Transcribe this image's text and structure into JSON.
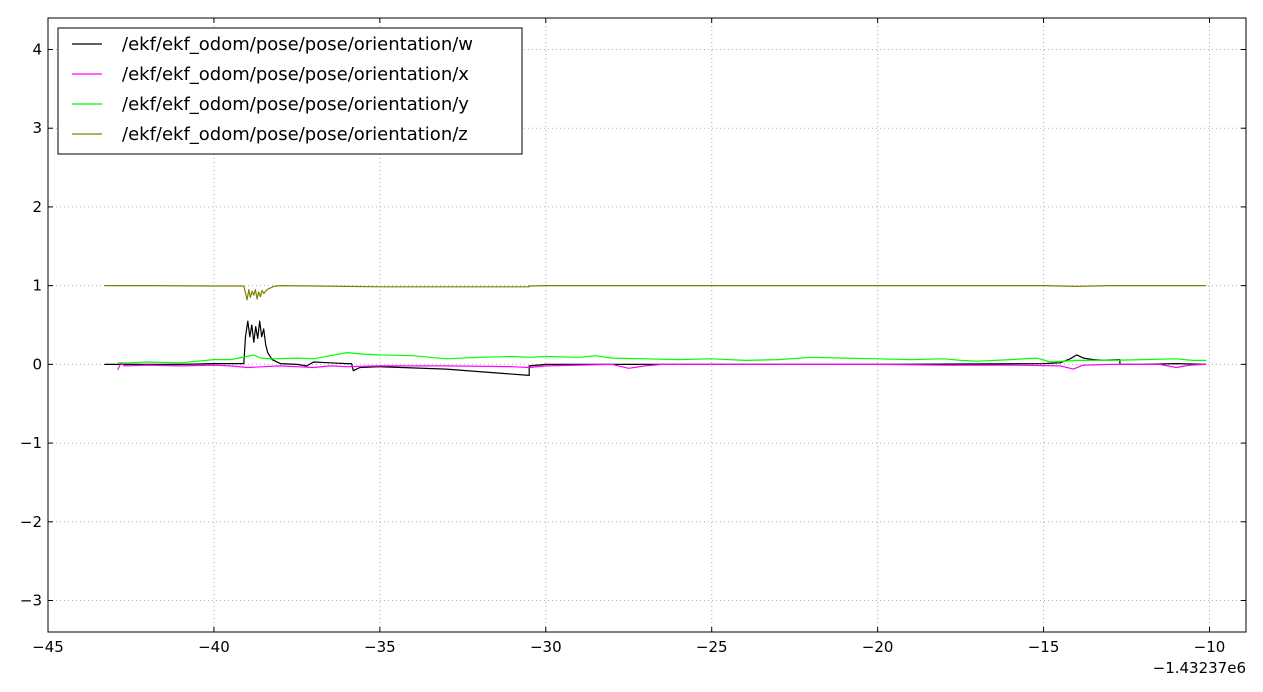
{
  "chart_data": {
    "type": "line",
    "xlim": [
      -45,
      -8.9
    ],
    "ylim": [
      -3.4,
      4.4
    ],
    "x_ticks": [
      -45,
      -40,
      -35,
      -30,
      -25,
      -20,
      -15,
      -10
    ],
    "x_tick_labels": [
      "−45",
      "−40",
      "−35",
      "−30",
      "−25",
      "−20",
      "−15",
      "−10"
    ],
    "y_ticks": [
      -3,
      -2,
      -1,
      0,
      1,
      2,
      3,
      4
    ],
    "y_tick_labels": [
      "−3",
      "−2",
      "−1",
      "0",
      "1",
      "2",
      "3",
      "4"
    ],
    "x_offset_label": "−1.43237e6",
    "grid": true,
    "legend_position": "top-left",
    "series": [
      {
        "name": "/ekf/ekf_odom/pose/pose/orientation/w",
        "color": "#000000",
        "points": [
          [
            -43.3,
            0.0
          ],
          [
            -42,
            0.0
          ],
          [
            -41,
            0.0
          ],
          [
            -40,
            0.01
          ],
          [
            -39.1,
            0.01
          ],
          [
            -39.05,
            0.35
          ],
          [
            -38.98,
            0.55
          ],
          [
            -38.92,
            0.35
          ],
          [
            -38.86,
            0.5
          ],
          [
            -38.8,
            0.28
          ],
          [
            -38.74,
            0.48
          ],
          [
            -38.68,
            0.33
          ],
          [
            -38.62,
            0.55
          ],
          [
            -38.56,
            0.35
          ],
          [
            -38.5,
            0.45
          ],
          [
            -38.44,
            0.25
          ],
          [
            -38.38,
            0.15
          ],
          [
            -38.25,
            0.06
          ],
          [
            -38.0,
            0.01
          ],
          [
            -37.5,
            0.0
          ],
          [
            -37.2,
            -0.02
          ],
          [
            -37.0,
            0.03
          ],
          [
            -36.5,
            0.02
          ],
          [
            -36.0,
            0.01
          ],
          [
            -35.85,
            0.01
          ],
          [
            -35.8,
            -0.08
          ],
          [
            -35.6,
            -0.04
          ],
          [
            -35.0,
            -0.03
          ],
          [
            -33.0,
            -0.06
          ],
          [
            -30.5,
            -0.14
          ],
          [
            -30.5,
            -0.02
          ],
          [
            -30.0,
            0.0
          ],
          [
            -28.0,
            0.0
          ],
          [
            -25.0,
            0.0
          ],
          [
            -20.0,
            0.0
          ],
          [
            -15.0,
            0.01
          ],
          [
            -14.5,
            0.02
          ],
          [
            -14.2,
            0.07
          ],
          [
            -14.0,
            0.12
          ],
          [
            -13.8,
            0.08
          ],
          [
            -13.5,
            0.06
          ],
          [
            -13.2,
            0.05
          ],
          [
            -12.7,
            0.06
          ],
          [
            -12.7,
            0.0
          ],
          [
            -12.0,
            0.0
          ],
          [
            -11.0,
            0.01
          ],
          [
            -10.1,
            0.0
          ]
        ]
      },
      {
        "name": "/ekf/ekf_odom/pose/pose/orientation/x",
        "color": "#ff00ff",
        "points": [
          [
            -42.9,
            -0.07
          ],
          [
            -42.8,
            0.02
          ],
          [
            -42.7,
            -0.02
          ],
          [
            -42,
            -0.01
          ],
          [
            -41,
            -0.02
          ],
          [
            -40,
            -0.01
          ],
          [
            -39.5,
            -0.02
          ],
          [
            -39,
            -0.04
          ],
          [
            -38.5,
            -0.03
          ],
          [
            -38,
            -0.02
          ],
          [
            -37.5,
            -0.03
          ],
          [
            -37,
            -0.04
          ],
          [
            -36.5,
            -0.02
          ],
          [
            -36,
            -0.03
          ],
          [
            -35,
            -0.02
          ],
          [
            -33,
            -0.02
          ],
          [
            -31,
            -0.03
          ],
          [
            -30.5,
            -0.04
          ],
          [
            -30,
            -0.02
          ],
          [
            -29,
            -0.01
          ],
          [
            -28,
            0.0
          ],
          [
            -27.5,
            -0.05
          ],
          [
            -27,
            -0.02
          ],
          [
            -26.5,
            0.0
          ],
          [
            -25,
            0.0
          ],
          [
            -23,
            0.0
          ],
          [
            -20,
            0.0
          ],
          [
            -18,
            -0.01
          ],
          [
            -16,
            -0.01
          ],
          [
            -14.5,
            -0.02
          ],
          [
            -14.1,
            -0.06
          ],
          [
            -13.8,
            -0.01
          ],
          [
            -13,
            0.0
          ],
          [
            -11.5,
            0.0
          ],
          [
            -11,
            -0.04
          ],
          [
            -10.6,
            -0.01
          ],
          [
            -10.1,
            0.0
          ]
        ]
      },
      {
        "name": "/ekf/ekf_odom/pose/pose/orientation/y",
        "color": "#00ff00",
        "points": [
          [
            -42.9,
            0.02
          ],
          [
            -42.5,
            0.02
          ],
          [
            -42,
            0.03
          ],
          [
            -41,
            0.02
          ],
          [
            -40,
            0.06
          ],
          [
            -39.5,
            0.06
          ],
          [
            -39,
            0.1
          ],
          [
            -38.8,
            0.12
          ],
          [
            -38.6,
            0.08
          ],
          [
            -38.2,
            0.07
          ],
          [
            -37.5,
            0.08
          ],
          [
            -37,
            0.07
          ],
          [
            -36.5,
            0.11
          ],
          [
            -36,
            0.15
          ],
          [
            -35.5,
            0.13
          ],
          [
            -35,
            0.12
          ],
          [
            -34,
            0.11
          ],
          [
            -33,
            0.07
          ],
          [
            -32,
            0.09
          ],
          [
            -31,
            0.1
          ],
          [
            -30.5,
            0.09
          ],
          [
            -30,
            0.1
          ],
          [
            -29,
            0.09
          ],
          [
            -28.5,
            0.11
          ],
          [
            -28,
            0.08
          ],
          [
            -27,
            0.07
          ],
          [
            -26,
            0.06
          ],
          [
            -25,
            0.07
          ],
          [
            -24,
            0.05
          ],
          [
            -23,
            0.06
          ],
          [
            -22,
            0.09
          ],
          [
            -21,
            0.08
          ],
          [
            -20,
            0.07
          ],
          [
            -19,
            0.06
          ],
          [
            -18,
            0.07
          ],
          [
            -17.5,
            0.05
          ],
          [
            -17,
            0.04
          ],
          [
            -16,
            0.06
          ],
          [
            -15.2,
            0.08
          ],
          [
            -14.8,
            0.03
          ],
          [
            -14,
            0.05
          ],
          [
            -13,
            0.05
          ],
          [
            -12,
            0.06
          ],
          [
            -11,
            0.07
          ],
          [
            -10.5,
            0.05
          ],
          [
            -10.1,
            0.05
          ]
        ]
      },
      {
        "name": "/ekf/ekf_odom/pose/pose/orientation/z",
        "color": "#808000",
        "points": [
          [
            -43.3,
            1.0
          ],
          [
            -42,
            1.0
          ],
          [
            -40,
            0.995
          ],
          [
            -39.1,
            0.995
          ],
          [
            -39.0,
            0.82
          ],
          [
            -38.95,
            0.95
          ],
          [
            -38.9,
            0.85
          ],
          [
            -38.85,
            0.93
          ],
          [
            -38.8,
            0.88
          ],
          [
            -38.75,
            0.95
          ],
          [
            -38.7,
            0.83
          ],
          [
            -38.65,
            0.92
          ],
          [
            -38.6,
            0.86
          ],
          [
            -38.55,
            0.94
          ],
          [
            -38.5,
            0.9
          ],
          [
            -38.4,
            0.95
          ],
          [
            -38.2,
            0.99
          ],
          [
            -38,
            1.0
          ],
          [
            -36,
            0.99
          ],
          [
            -35,
            0.985
          ],
          [
            -30.5,
            0.985
          ],
          [
            -30.5,
            0.995
          ],
          [
            -30,
            1.0
          ],
          [
            -25,
            1.0
          ],
          [
            -20,
            1.0
          ],
          [
            -15,
            1.0
          ],
          [
            -14,
            0.99
          ],
          [
            -13,
            1.0
          ],
          [
            -10.1,
            1.0
          ]
        ]
      }
    ]
  }
}
